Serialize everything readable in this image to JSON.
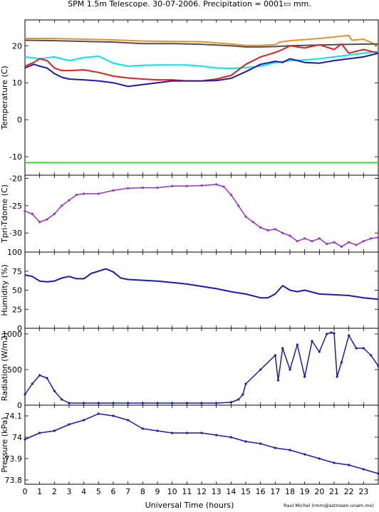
{
  "title": "SPM 1.5m Telescope. 30-07-2006. Precipitation = 0001▭ mm.",
  "xlabel": "Universal Time (hours)",
  "credit": "Raul Michel (rmm@astrosen.unam.mx)",
  "x_ticks": [
    "0",
    "1",
    "2",
    "3",
    "4",
    "5",
    "6",
    "7",
    "8",
    "9",
    "10",
    "11",
    "12",
    "13",
    "14",
    "15",
    "16",
    "17",
    "18",
    "19",
    "20",
    "21",
    "22",
    "23"
  ],
  "chart_data": [
    {
      "type": "line",
      "ylabel": "Temperature (C)",
      "ylim": [
        -15,
        27
      ],
      "yticks": [
        "20",
        "10",
        "0",
        "-10"
      ],
      "ytick_values": [
        20,
        10,
        0,
        -10
      ],
      "series": [
        {
          "color": "#e8912a",
          "x": [
            0,
            2,
            4,
            6,
            8,
            10,
            12,
            14,
            15,
            16,
            17,
            17.3,
            18,
            20,
            21,
            22,
            22.2,
            23,
            24
          ],
          "y": [
            22,
            22,
            21.8,
            21.6,
            21.3,
            21.2,
            21.1,
            20.5,
            20.1,
            20.1,
            20.3,
            21,
            21.4,
            22,
            22.4,
            22.8,
            21.5,
            21.8,
            20
          ]
        },
        {
          "color": "#505050",
          "x": [
            0,
            2,
            4,
            6,
            8,
            10,
            12,
            14,
            15,
            16,
            17,
            18,
            20,
            22,
            24
          ],
          "y": [
            21.5,
            21.4,
            21.2,
            21,
            20.6,
            20.6,
            20.4,
            20,
            19.7,
            19.7,
            19.8,
            20,
            20.2,
            20.4,
            20.5
          ]
        },
        {
          "color": "#00e5e5",
          "x": [
            0,
            1,
            2,
            3,
            4,
            5,
            6,
            7,
            8,
            9,
            10,
            11,
            12,
            13,
            14,
            15,
            16,
            17,
            18,
            19,
            20,
            21,
            22,
            23,
            24
          ],
          "y": [
            17,
            16.5,
            17,
            16,
            16.8,
            17.2,
            15.3,
            14.5,
            14.7,
            14.8,
            14.8,
            14.8,
            14.5,
            14,
            13.9,
            14.1,
            14.5,
            15.5,
            16,
            16.2,
            16.5,
            17,
            17.5,
            18,
            18.5
          ]
        },
        {
          "color": "#dd2020",
          "x": [
            0,
            0.6,
            1,
            1.5,
            2,
            2.5,
            3,
            4,
            5,
            6,
            7,
            8,
            9,
            10,
            11,
            12,
            13,
            14,
            15,
            16,
            17,
            17.5,
            18,
            19,
            20,
            21,
            21.5,
            22,
            23,
            24
          ],
          "y": [
            14.5,
            15.5,
            16.5,
            16,
            14,
            13.3,
            13.3,
            13.5,
            12.8,
            11.8,
            11.3,
            11,
            10.8,
            10.8,
            10.5,
            10.5,
            11,
            12,
            15,
            17,
            18.2,
            19,
            20,
            19.4,
            20.3,
            19,
            20.5,
            18,
            19,
            18
          ]
        },
        {
          "color": "#1a1ab4",
          "x": [
            0,
            0.6,
            1,
            1.5,
            2,
            2.5,
            3,
            4,
            5,
            6,
            7,
            8,
            9,
            10,
            11,
            12,
            13,
            14,
            15,
            16,
            17,
            17.5,
            18,
            19,
            20,
            21,
            22,
            23,
            24
          ],
          "y": [
            14,
            15,
            14.5,
            14,
            12.5,
            11.5,
            11,
            10.8,
            10.5,
            10,
            9,
            9.5,
            10,
            10.5,
            10.5,
            10.5,
            10.6,
            11.2,
            13,
            15,
            15.8,
            15.5,
            16.5,
            15.5,
            15.3,
            16,
            16.5,
            17,
            18
          ]
        },
        {
          "color": "#33dd33",
          "x": [
            0,
            24
          ],
          "y": [
            -11.6,
            -11.6
          ]
        }
      ]
    },
    {
      "type": "scatter",
      "ylabel": "Tpri-Tdome (C)",
      "ylim": [
        -33.5,
        -19.4
      ],
      "yticks": [
        "-20",
        "-25",
        "-30"
      ],
      "ytick_values": [
        -20,
        -25,
        -30
      ],
      "series": [
        {
          "color": "#9932cc",
          "x": [
            0,
            0.5,
            1,
            1.5,
            2,
            2.5,
            3,
            3.5,
            4,
            5,
            6,
            7,
            8,
            9,
            10,
            11,
            12,
            13,
            13.5,
            14,
            14.5,
            15,
            15.5,
            16,
            16.5,
            17,
            17.5,
            18,
            18.5,
            19,
            19.5,
            20,
            20.5,
            21,
            21.5,
            22,
            22.5,
            23,
            23.5,
            24
          ],
          "y": [
            -26,
            -26.5,
            -28,
            -27.5,
            -26.5,
            -25,
            -24,
            -23,
            -22.8,
            -22.8,
            -22.2,
            -21.8,
            -21.7,
            -21.7,
            -21.4,
            -21.4,
            -21.3,
            -21.1,
            -21.5,
            -23,
            -25,
            -27,
            -28,
            -29,
            -29.5,
            -29.3,
            -30,
            -30.5,
            -31.5,
            -31,
            -31.5,
            -31,
            -32,
            -31.7,
            -32.5,
            -31.7,
            -32.2,
            -31.5,
            -31,
            -30.8
          ]
        }
      ]
    },
    {
      "type": "line",
      "ylabel": "Humidity (%)",
      "ylim": [
        0,
        100
      ],
      "yticks": [
        "100",
        "75",
        "50",
        "25",
        "0"
      ],
      "ytick_values": [
        100,
        75,
        50,
        25,
        0
      ],
      "series": [
        {
          "color": "#1a1ab4",
          "x": [
            0,
            0.5,
            1,
            1.5,
            2,
            2.5,
            3,
            3.5,
            4,
            4.5,
            5,
            5.5,
            6,
            6.5,
            7,
            8,
            9,
            10,
            11,
            12,
            13,
            14,
            15,
            16,
            16.5,
            17,
            17.5,
            18,
            18.5,
            19,
            20,
            21,
            22,
            23,
            24
          ],
          "y": [
            70,
            68,
            62,
            61,
            62,
            66,
            68,
            65,
            65,
            72,
            75,
            78,
            74,
            66,
            64,
            63,
            62,
            60,
            58,
            55,
            52,
            48,
            45,
            40,
            40,
            45,
            56,
            50,
            48,
            50,
            45,
            44,
            43,
            40,
            38
          ]
        }
      ]
    },
    {
      "type": "scatter",
      "ylabel": "Radiation (W/m2)",
      "ylim": [
        0,
        1080
      ],
      "yticks": [
        "1000",
        "500",
        "0"
      ],
      "ytick_values": [
        1000,
        500,
        0
      ],
      "series": [
        {
          "color": "#1a1ab4",
          "x": [
            0,
            0.5,
            1,
            1.5,
            2,
            2.5,
            3,
            4,
            5,
            6,
            7,
            8,
            9,
            10,
            11,
            12,
            13,
            14,
            14.5,
            14.8,
            15,
            16,
            17,
            17.2,
            17.5,
            18,
            18.5,
            19,
            19.5,
            20,
            20.5,
            20.8,
            21,
            21.2,
            21.5,
            22,
            22.5,
            23,
            23.5,
            24
          ],
          "y": [
            150,
            300,
            420,
            380,
            200,
            80,
            30,
            30,
            30,
            30,
            30,
            30,
            30,
            30,
            30,
            30,
            30,
            40,
            80,
            150,
            300,
            500,
            700,
            350,
            800,
            500,
            850,
            400,
            900,
            750,
            1000,
            1020,
            1010,
            400,
            600,
            980,
            800,
            800,
            700,
            550
          ]
        }
      ]
    },
    {
      "type": "scatter",
      "ylabel": "Pressure (kPa)",
      "ylim": [
        73.78,
        74.15
      ],
      "yticks": [
        "74.1",
        "74",
        "73.9",
        "73.8"
      ],
      "ytick_values": [
        74.1,
        74.0,
        73.9,
        73.8
      ],
      "series": [
        {
          "color": "#1a1ab4",
          "x": [
            0,
            1,
            2,
            3,
            4,
            5,
            6,
            7,
            8,
            9,
            10,
            11,
            12,
            13,
            14,
            15,
            16,
            17,
            18,
            19,
            20,
            21,
            22,
            23,
            24
          ],
          "y": [
            73.99,
            74.02,
            74.03,
            74.06,
            74.08,
            74.11,
            74.1,
            74.08,
            74.04,
            74.03,
            74.02,
            74.02,
            74.02,
            74.01,
            74.0,
            73.98,
            73.97,
            73.95,
            73.94,
            73.92,
            73.9,
            73.88,
            73.87,
            73.85,
            73.83
          ]
        }
      ]
    }
  ]
}
